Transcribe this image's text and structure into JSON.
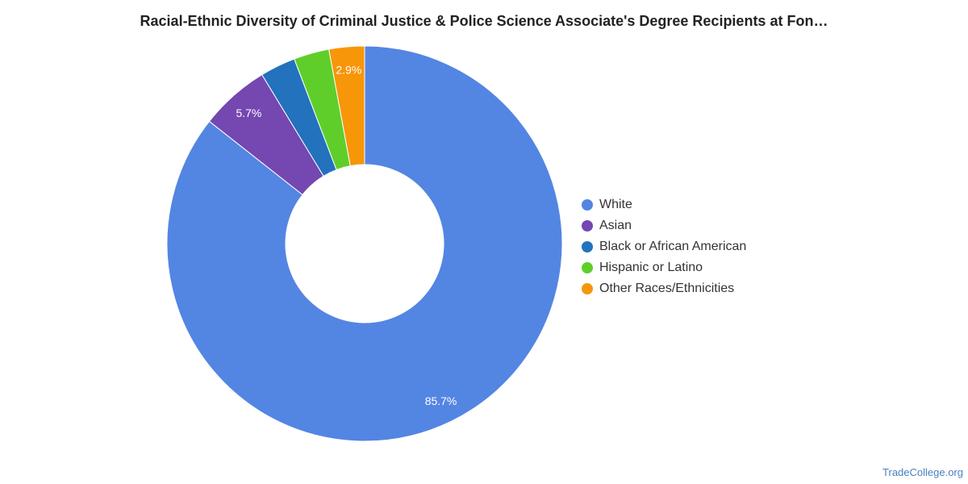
{
  "chart_data": {
    "type": "pie",
    "title": "Racial-Ethnic Diversity of Criminal Justice & Police Science Associate's Degree Recipients at Fon…",
    "categories": [
      "White",
      "Asian",
      "Black or African American",
      "Hispanic or Latino",
      "Other Races/Ethnicities"
    ],
    "values": [
      85.7,
      5.7,
      2.9,
      2.9,
      2.9
    ],
    "data_labels": [
      "85.7%",
      "5.7%",
      "",
      "",
      "2.9%"
    ],
    "colors": [
      "#5385e3",
      "#7547b1",
      "#2272bd",
      "#5fce2a",
      "#f79609"
    ],
    "legend_position": "right",
    "donut": true
  },
  "watermark": "TradeCollege.org"
}
